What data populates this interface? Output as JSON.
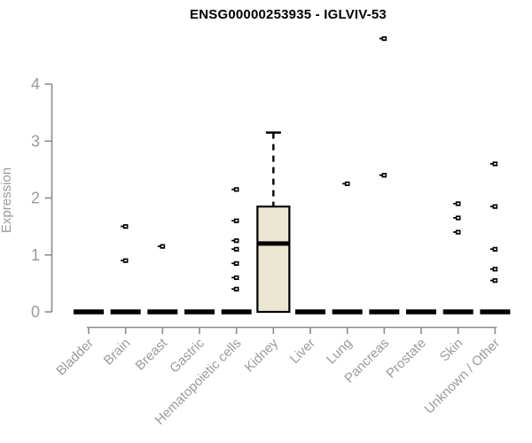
{
  "chart_data": {
    "type": "boxplot",
    "title": "ENSG00000253935 - IGLVIV-53",
    "ylabel": "Expression",
    "xlabel": "",
    "ylim": [
      0,
      4
    ],
    "yticks": [
      0,
      1,
      2,
      3,
      4
    ],
    "grid": false,
    "legend": false,
    "categories": [
      "Bladder",
      "Brain",
      "Breast",
      "Gastric",
      "Hematopoietic cells",
      "Kidney",
      "Liver",
      "Lung",
      "Pancreas",
      "Prostate",
      "Skin",
      "Unknown / Other"
    ],
    "boxes": [
      {
        "category": "Bladder",
        "median": 0,
        "q1": 0,
        "q3": 0,
        "whisker_low": 0,
        "whisker_high": 0,
        "outliers": []
      },
      {
        "category": "Brain",
        "median": 0,
        "q1": 0,
        "q3": 0,
        "whisker_low": 0,
        "whisker_high": 0,
        "outliers": [
          1.5,
          0.9
        ]
      },
      {
        "category": "Breast",
        "median": 0,
        "q1": 0,
        "q3": 0,
        "whisker_low": 0,
        "whisker_high": 0,
        "outliers": [
          1.15
        ]
      },
      {
        "category": "Gastric",
        "median": 0,
        "q1": 0,
        "q3": 0,
        "whisker_low": 0,
        "whisker_high": 0,
        "outliers": []
      },
      {
        "category": "Hematopoietic cells",
        "median": 0,
        "q1": 0,
        "q3": 0,
        "whisker_low": 0,
        "whisker_high": 0,
        "outliers": [
          2.15,
          1.6,
          1.25,
          1.1,
          0.85,
          0.6,
          0.4
        ]
      },
      {
        "category": "Kidney",
        "median": 1.2,
        "q1": 0,
        "q3": 1.85,
        "whisker_low": 0,
        "whisker_high": 3.15,
        "outliers": []
      },
      {
        "category": "Liver",
        "median": 0,
        "q1": 0,
        "q3": 0,
        "whisker_low": 0,
        "whisker_high": 0,
        "outliers": []
      },
      {
        "category": "Lung",
        "median": 0,
        "q1": 0,
        "q3": 0,
        "whisker_low": 0,
        "whisker_high": 0,
        "outliers": [
          2.25
        ]
      },
      {
        "category": "Pancreas",
        "median": 0,
        "q1": 0,
        "q3": 0,
        "whisker_low": 0,
        "whisker_high": 0,
        "outliers": [
          4.8,
          2.4
        ]
      },
      {
        "category": "Prostate",
        "median": 0,
        "q1": 0,
        "q3": 0,
        "whisker_low": 0,
        "whisker_high": 0,
        "outliers": []
      },
      {
        "category": "Skin",
        "median": 0,
        "q1": 0,
        "q3": 0,
        "whisker_low": 0,
        "whisker_high": 0,
        "outliers": [
          1.9,
          1.65,
          1.4
        ]
      },
      {
        "category": "Unknown / Other",
        "median": 0,
        "q1": 0,
        "q3": 0,
        "whisker_low": 0,
        "whisker_high": 0,
        "outliers": [
          2.6,
          1.85,
          1.1,
          0.75,
          0.55
        ]
      }
    ],
    "colors": {
      "background": "#ffffff",
      "box_fill": "#ece7d1",
      "box_border": "#000000",
      "median": "#000000",
      "outlier": "#000000",
      "axis": "#8c8c8c",
      "tick_text": "#9b9b9b",
      "title": "#000000"
    }
  }
}
